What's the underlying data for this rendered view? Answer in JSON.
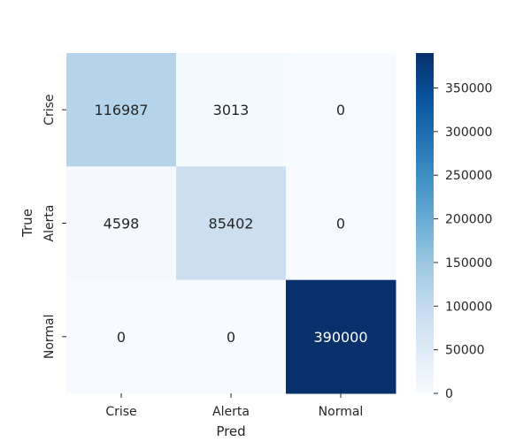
{
  "chart_data": {
    "type": "heatmap",
    "title": "",
    "xlabel": "Pred",
    "ylabel": "True",
    "x_categories": [
      "Crise",
      "Alerta",
      "Normal"
    ],
    "y_categories": [
      "Crise",
      "Alerta",
      "Normal"
    ],
    "values": [
      [
        116987,
        3013,
        0
      ],
      [
        4598,
        85402,
        0
      ],
      [
        0,
        0,
        390000
      ]
    ],
    "cell_labels": [
      [
        "116987",
        "3013",
        "0"
      ],
      [
        "4598",
        "85402",
        "0"
      ],
      [
        "0",
        "0",
        "390000"
      ]
    ],
    "colormap": "Blues",
    "colorbar": {
      "range": [
        0,
        390000
      ],
      "ticks": [
        0,
        50000,
        100000,
        150000,
        200000,
        250000,
        300000,
        350000
      ],
      "tick_labels": [
        "0",
        "50000",
        "100000",
        "150000",
        "200000",
        "250000",
        "300000",
        "350000"
      ]
    },
    "colors": {
      "low": "#f7fbff",
      "high": "#08306b",
      "text_light": "#ffffff",
      "text_dark": "#262626"
    }
  }
}
